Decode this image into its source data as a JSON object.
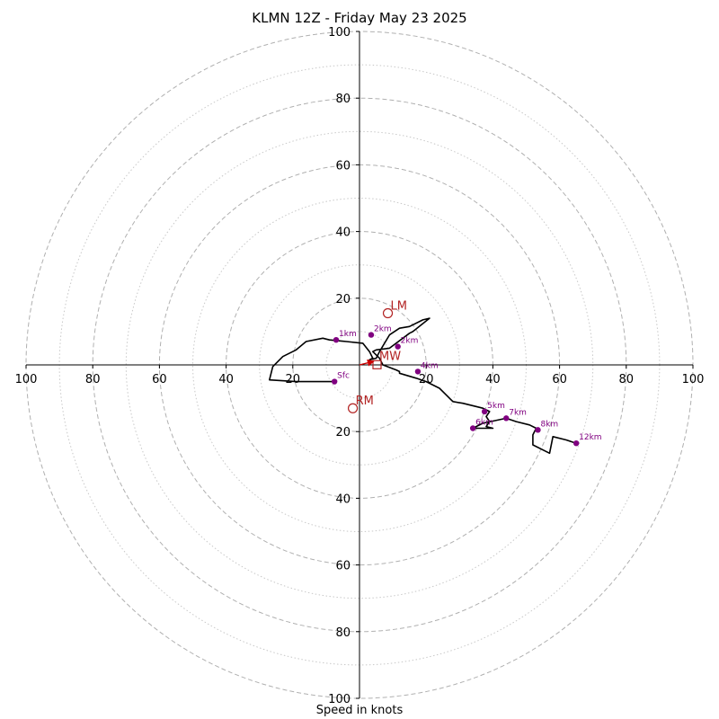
{
  "chart_data": {
    "type": "scatter",
    "subtype": "hodograph",
    "title": "KLMN 12Z - Friday May 23 2025",
    "xlabel": "Speed in knots",
    "ylabel": "",
    "xlim": [
      -100,
      100
    ],
    "ylim": [
      -100,
      100
    ],
    "rings_major": [
      20,
      40,
      60,
      80,
      100
    ],
    "rings_minor": [
      10,
      30,
      50,
      70,
      90
    ],
    "tick_labels": {
      "x_negative": [
        "20",
        "40",
        "60",
        "80",
        "100"
      ],
      "x_positive": [
        "20",
        "40",
        "60",
        "80",
        "100"
      ],
      "y_negative": [
        "20",
        "40",
        "60",
        "80",
        "100"
      ],
      "y_positive": [
        "20",
        "40",
        "60",
        "80",
        "100"
      ]
    },
    "colors": {
      "trace": "#000000",
      "height_markers": "#800080",
      "storm_motion": "#b22222",
      "shear_arrow": "#cc0000",
      "major_grid": "#b0b0b0",
      "minor_grid": "#c8c8c8"
    },
    "trace": {
      "u": [
        -7.5,
        -12,
        -19,
        -27,
        -26,
        -23,
        -19,
        -16,
        -11,
        -9,
        -4,
        1,
        3,
        4,
        3,
        5,
        6,
        9,
        12,
        15,
        19,
        21,
        16,
        15,
        9,
        5,
        4,
        6,
        7,
        11,
        12,
        12,
        17,
        20,
        24,
        26,
        28,
        31,
        37,
        39,
        38,
        39,
        38,
        40,
        34,
        37,
        44,
        47,
        51,
        53,
        52,
        52,
        57,
        58,
        62,
        65
      ],
      "v": [
        -5,
        -5,
        -5,
        -4.5,
        -0.5,
        2.5,
        4.5,
        7,
        8,
        7.5,
        7,
        6.5,
        4,
        2,
        1.5,
        2,
        4,
        9,
        11,
        11.5,
        13.5,
        14,
        10,
        9.5,
        5,
        4.5,
        4,
        2,
        0,
        -1.5,
        -2,
        -2.5,
        -4,
        -5,
        -7,
        -9,
        -11,
        -11.5,
        -13,
        -14,
        -15.5,
        -17,
        -18.5,
        -19,
        -19,
        -17.5,
        -16,
        -17,
        -18,
        -19,
        -21,
        -24,
        -26.5,
        -21.5,
        -22.5,
        -23.5
      ]
    },
    "height_markers": [
      {
        "label": "Sfc",
        "u": -7.5,
        "v": -5
      },
      {
        "label": "1km",
        "u": -7,
        "v": 7.5
      },
      {
        "label": "2km",
        "u": 3.5,
        "v": 9
      },
      {
        "label": "2km",
        "u": 11.5,
        "v": 5.5
      },
      {
        "label": "4km",
        "u": 17.5,
        "v": -2
      },
      {
        "label": "5km",
        "u": 37.5,
        "v": -14
      },
      {
        "label": "6km",
        "u": 34,
        "v": -19
      },
      {
        "label": "7km",
        "u": 44,
        "v": -16
      },
      {
        "label": "8km",
        "u": 53.5,
        "v": -19.5
      },
      {
        "label": "12km",
        "u": 65,
        "v": -23.5
      }
    ],
    "storm_motion": [
      {
        "label": "LM",
        "u": 8.5,
        "v": 15.5
      },
      {
        "label": "RM",
        "u": -2,
        "v": -13
      },
      {
        "label": "MW",
        "u": 3.5,
        "v": 1
      }
    ],
    "shear_arrow": {
      "u": 4,
      "v": 1
    }
  }
}
